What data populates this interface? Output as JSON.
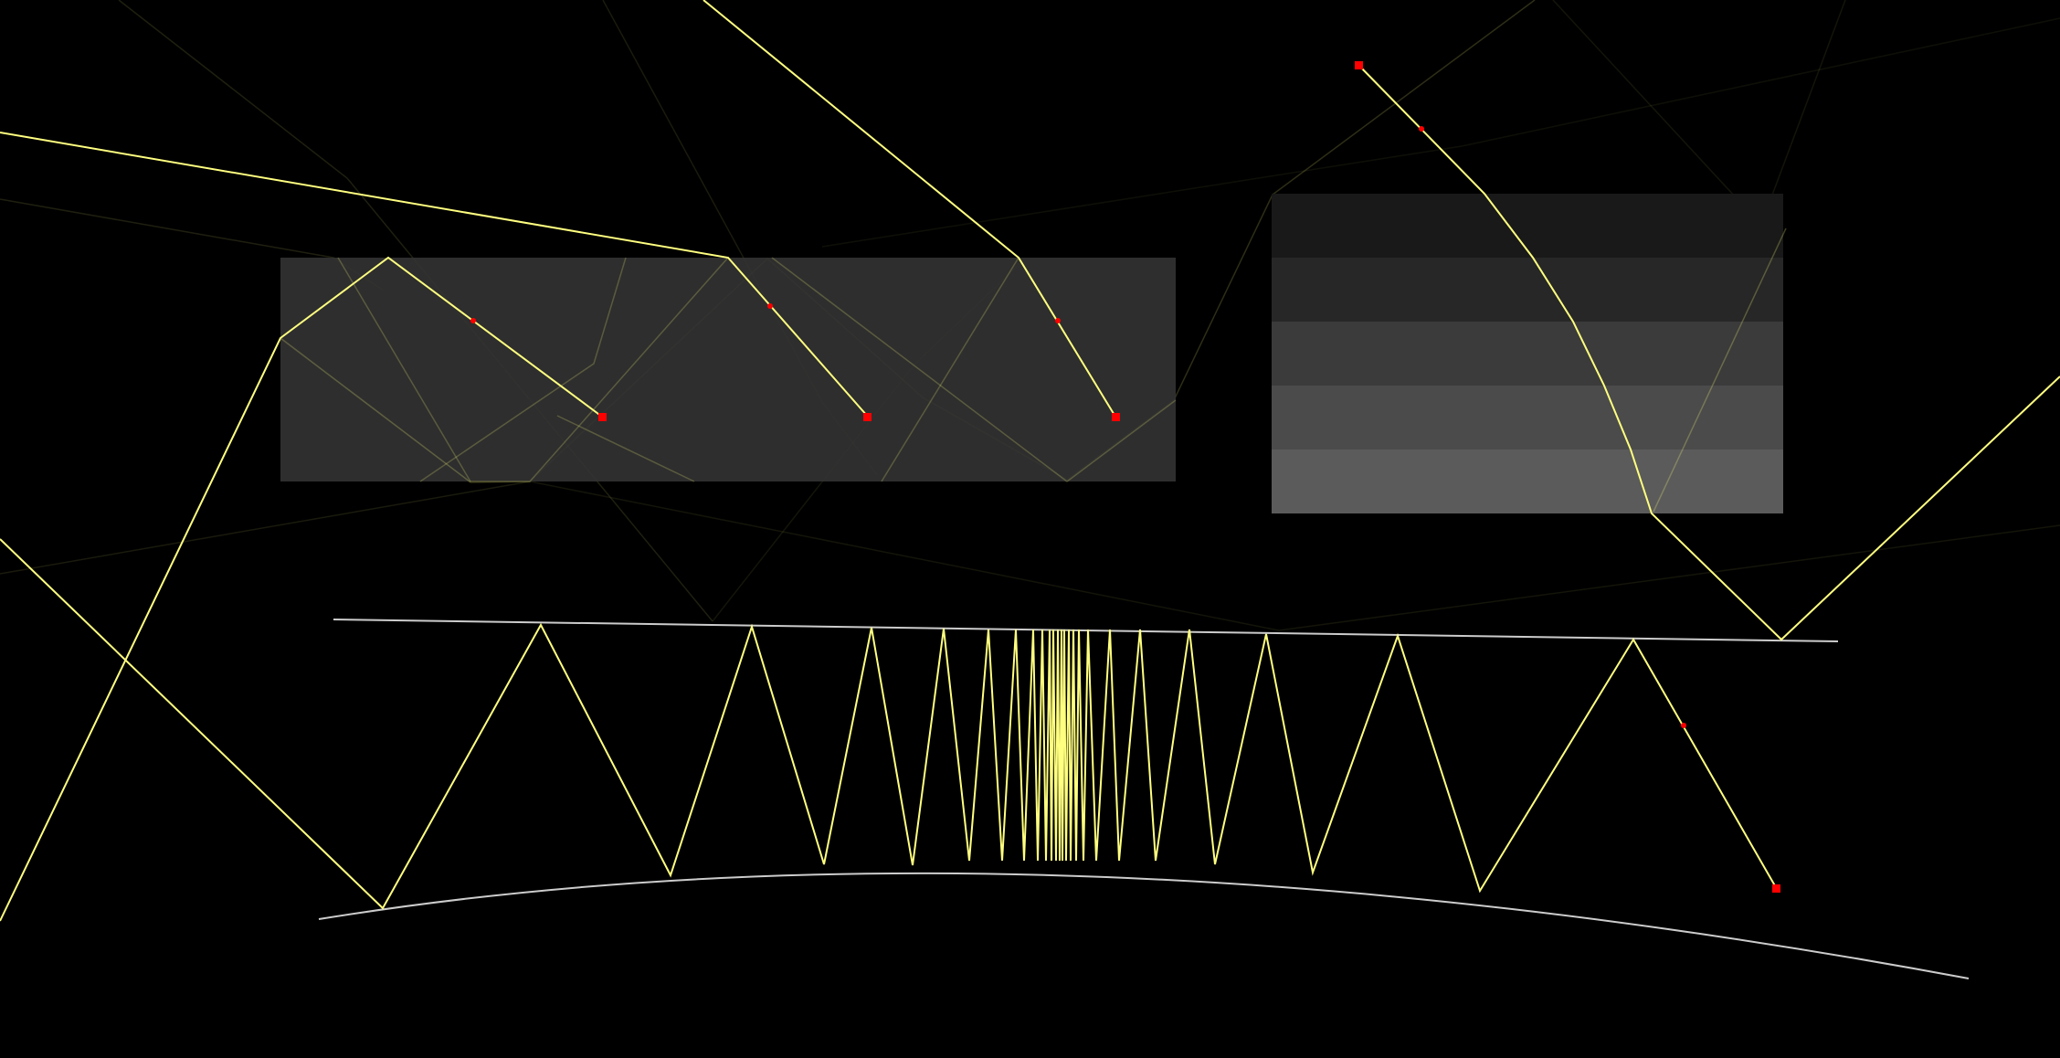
{
  "scene": {
    "background": "#000000",
    "ray_color": "#ffff80",
    "ghost_ray_color": "#ffff80",
    "mirror_color": "#cccccc",
    "marker_color": "#ff0000",
    "panel_color": "#333333",
    "stack_colors": [
      "#191919",
      "#272727",
      "#3b3b3b",
      "#4b4b4b",
      "#5b5b5b"
    ]
  }
}
